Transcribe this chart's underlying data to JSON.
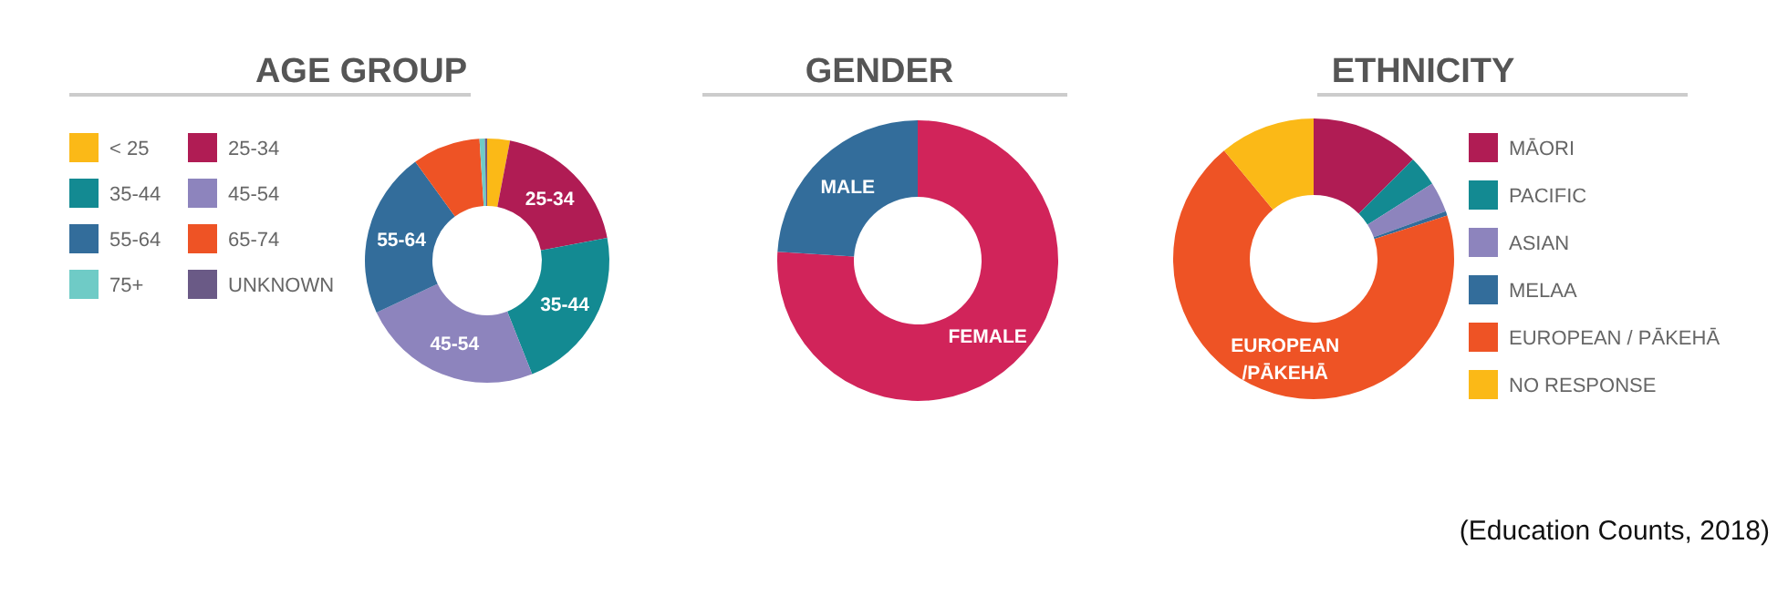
{
  "chart_data": [
    {
      "type": "donut",
      "title": "AGE GROUP",
      "categories": [
        "< 25",
        "25-34",
        "35-44",
        "45-54",
        "55-64",
        "65-74",
        "75+",
        "UNKNOWN"
      ],
      "values": [
        3,
        19,
        22,
        24,
        22,
        9,
        0.7,
        0.3
      ],
      "colors": [
        "#fbb917",
        "#b01c54",
        "#138a92",
        "#8d84bd",
        "#336d9b",
        "#ee5325",
        "#6fcbc6",
        "#6a5a86"
      ],
      "value_labels": [
        null,
        "25-34",
        "35-44",
        "45-54",
        "55-64",
        null,
        null,
        null
      ],
      "legend": "left"
    },
    {
      "type": "donut",
      "title": "GENDER",
      "categories": [
        "FEMALE",
        "MALE"
      ],
      "values": [
        76,
        24
      ],
      "colors": [
        "#d1245a",
        "#336d9b"
      ],
      "legend": false
    },
    {
      "type": "donut",
      "title": "ETHNICITY",
      "categories": [
        "MĀORI",
        "PACIFIC",
        "ASIAN",
        "MELAA",
        "EUROPEAN / PĀKEHĀ",
        "NO RESPONSE"
      ],
      "values": [
        12.5,
        3.5,
        3.5,
        0.5,
        69,
        11
      ],
      "colors": [
        "#b01c54",
        "#138a92",
        "#8d84bd",
        "#336d9b",
        "#ee5325",
        "#fbb917"
      ],
      "value_labels": [
        null,
        null,
        null,
        null,
        "EUROPEAN\n/PĀKEHĀ",
        null
      ],
      "legend": "right",
      "annotations": [
        "(Education Counts, 2018)"
      ]
    }
  ]
}
